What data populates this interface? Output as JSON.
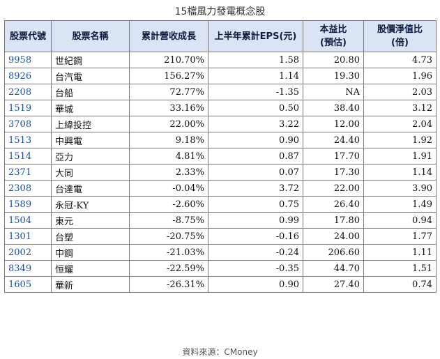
{
  "title": "15檔風力發電概念股",
  "source": "資料來源：CMoney",
  "colors": {
    "header_bg": "#dbe4f5",
    "code_text": "#1f4fa0",
    "border": "#7a7a7a"
  },
  "table": {
    "headers": [
      [
        "股票代號"
      ],
      [
        "股票名稱"
      ],
      [
        "累計營收成長"
      ],
      [
        "上半年累計EPS(元)"
      ],
      [
        "本益比",
        "(預估)"
      ],
      [
        "股價淨值比",
        "(倍)"
      ]
    ],
    "rows": [
      [
        "9958",
        "世紀鋼",
        "210.70%",
        "1.58",
        "20.80",
        "4.73"
      ],
      [
        "8926",
        "台汽電",
        "156.27%",
        "1.14",
        "19.30",
        "1.96"
      ],
      [
        "2208",
        "台船",
        "72.77%",
        "-1.35",
        "NA",
        "2.03"
      ],
      [
        "1519",
        "華城",
        "33.16%",
        "0.50",
        "38.40",
        "3.12"
      ],
      [
        "3708",
        "上緯投控",
        "22.00%",
        "3.22",
        "12.00",
        "2.04"
      ],
      [
        "1513",
        "中興電",
        "9.18%",
        "0.90",
        "24.40",
        "1.92"
      ],
      [
        "1514",
        "亞力",
        "4.81%",
        "0.87",
        "17.70",
        "1.91"
      ],
      [
        "2371",
        "大同",
        "2.33%",
        "0.07",
        "17.30",
        "1.14"
      ],
      [
        "2308",
        "台達電",
        "-0.04%",
        "3.72",
        "22.00",
        "3.90"
      ],
      [
        "1589",
        "永冠-KY",
        "-2.60%",
        "0.75",
        "26.40",
        "1.49"
      ],
      [
        "1504",
        "東元",
        "-8.75%",
        "0.99",
        "17.80",
        "0.94"
      ],
      [
        "1301",
        "台塑",
        "-20.75%",
        "-0.16",
        "24.00",
        "1.77"
      ],
      [
        "2002",
        "中鋼",
        "-21.03%",
        "-0.24",
        "206.60",
        "1.11"
      ],
      [
        "8349",
        "恒耀",
        "-22.59%",
        "-0.35",
        "44.70",
        "1.51"
      ],
      [
        "1605",
        "華新",
        "-26.31%",
        "0.90",
        "27.40",
        "0.74"
      ]
    ]
  }
}
